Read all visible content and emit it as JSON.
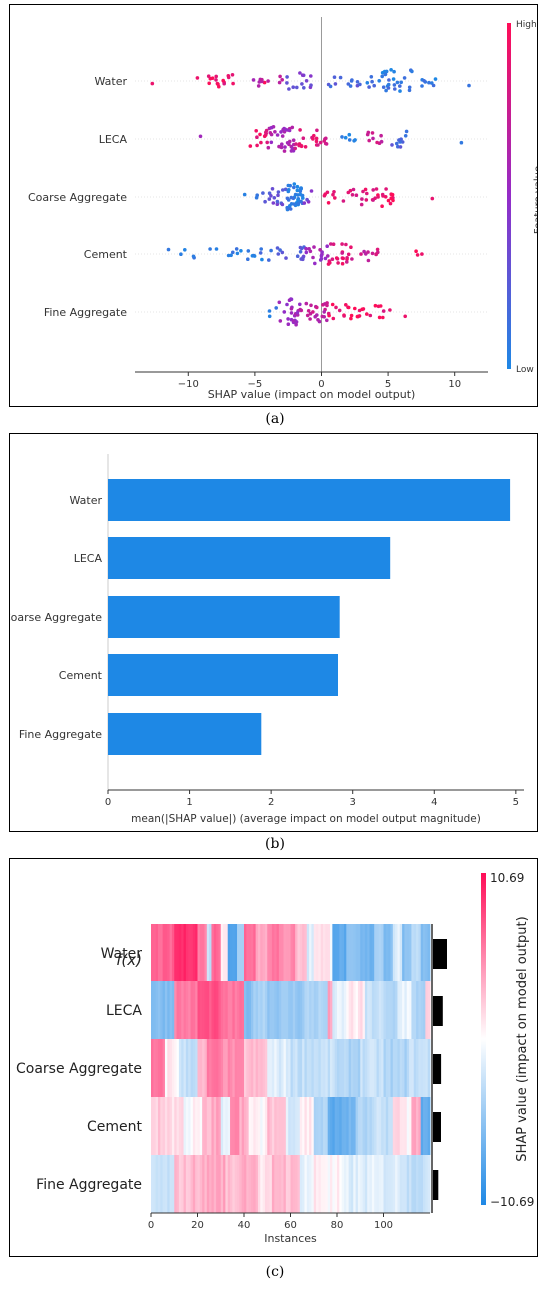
{
  "captions": {
    "a": "(a)",
    "b": "(b)",
    "c": "(c)"
  },
  "colors": {
    "low": "#1e88e5",
    "high": "#ff0d57",
    "bar": "#1e88e5",
    "axis": "#333333"
  },
  "chart_data": [
    {
      "type": "scatter",
      "title": "",
      "xlabel": "SHAP value (impact on model output)",
      "colorbar_label": "Feature value",
      "colorbar_high": "High",
      "colorbar_low": "Low",
      "xlim": [
        -14,
        12.5
      ],
      "xticks": [
        -10,
        -5,
        0,
        5,
        10
      ],
      "xtick_labels": [
        "−10",
        "−5",
        "0",
        "5",
        "10"
      ],
      "features": [
        "Water",
        "LECA",
        "Coarse Aggregate",
        "Cement",
        "Fine Aggregate"
      ],
      "series": [
        {
          "name": "Water",
          "dist": [
            [
              -12.7,
              12.9,
              0.95,
              3
            ],
            [
              -9.5,
              -6.4,
              0.9,
              16
            ],
            [
              -5.3,
              -2.8,
              0.65,
              10
            ],
            [
              -2.6,
              -0.6,
              0.35,
              14
            ],
            [
              0.4,
              3.0,
              0.2,
              12
            ],
            [
              3.2,
              4.4,
              0.1,
              6
            ],
            [
              4.5,
              6.8,
              0.08,
              26
            ],
            [
              7.0,
              8.6,
              0.05,
              8
            ],
            [
              11.0,
              11.1,
              0.05,
              1
            ]
          ]
        },
        {
          "name": "LECA",
          "dist": [
            [
              -9.1,
              -9.0,
              0.5,
              1
            ],
            [
              -5.5,
              -4.0,
              0.9,
              12
            ],
            [
              -4.0,
              -2.0,
              0.6,
              34
            ],
            [
              -2.0,
              0.0,
              0.85,
              18
            ],
            [
              0.1,
              0.5,
              0.8,
              5
            ],
            [
              1.4,
              2.6,
              0.05,
              6
            ],
            [
              3.3,
              4.7,
              0.75,
              9
            ],
            [
              4.8,
              6.4,
              0.2,
              12
            ],
            [
              10.5,
              10.6,
              0.05,
              1
            ]
          ]
        },
        {
          "name": "Coarse Aggregate",
          "dist": [
            [
              -6.0,
              -4.8,
              0.05,
              3
            ],
            [
              -4.5,
              -2.6,
              0.3,
              16
            ],
            [
              -2.6,
              -1.4,
              0.05,
              38
            ],
            [
              -1.3,
              -0.7,
              0.4,
              4
            ],
            [
              0.2,
              2.0,
              0.9,
              8
            ],
            [
              2.0,
              4.0,
              0.85,
              14
            ],
            [
              4.0,
              5.6,
              0.95,
              16
            ],
            [
              8.2,
              8.4,
              0.95,
              1
            ]
          ]
        },
        {
          "name": "Cement",
          "dist": [
            [
              -11.5,
              -9.5,
              0.05,
              5
            ],
            [
              -8.4,
              -6.0,
              0.05,
              8
            ],
            [
              -5.6,
              -3.6,
              0.08,
              10
            ],
            [
              -3.5,
              -1.2,
              0.25,
              14
            ],
            [
              -1.2,
              0.5,
              0.55,
              16
            ],
            [
              0.5,
              2.5,
              0.85,
              22
            ],
            [
              2.5,
              4.5,
              0.75,
              10
            ],
            [
              7.0,
              7.8,
              0.95,
              3
            ]
          ]
        },
        {
          "name": "Fine Aggregate",
          "dist": [
            [
              -4.0,
              -3.2,
              0.05,
              3
            ],
            [
              -3.2,
              -1.6,
              0.55,
              24
            ],
            [
              -1.6,
              0.5,
              0.7,
              24
            ],
            [
              0.5,
              2.0,
              0.9,
              10
            ],
            [
              2.0,
              4.5,
              0.95,
              16
            ],
            [
              4.6,
              5.2,
              0.9,
              3
            ],
            [
              6.2,
              6.3,
              0.95,
              1
            ]
          ]
        }
      ]
    },
    {
      "type": "bar",
      "title": "",
      "xlabel": "mean(|SHAP value|) (average impact on model output magnitude)",
      "categories": [
        "Water",
        "LECA",
        "Coarse Aggregate",
        "Cement",
        "Fine Aggregate"
      ],
      "values": [
        4.93,
        3.46,
        2.84,
        2.82,
        1.88
      ],
      "xlim": [
        0,
        5.1
      ],
      "xticks": [
        0,
        1,
        2,
        3,
        4,
        5
      ],
      "xtick_labels": [
        "0",
        "1",
        "2",
        "3",
        "4",
        "5"
      ]
    },
    {
      "type": "heatmap",
      "title": "",
      "xlabel": "Instances",
      "fx_label": "f(x)",
      "colorbar_label": "SHAP value (impact on model output)",
      "colorbar_max_label": "10.69",
      "colorbar_min_label": "−10.69",
      "vmin": -10.69,
      "vmax": 10.69,
      "n_instances": 120,
      "xticks": [
        0,
        20,
        40,
        60,
        80,
        100
      ],
      "xtick_labels": [
        "0",
        "20",
        "40",
        "60",
        "80",
        "100"
      ],
      "features": [
        "Water",
        "LECA",
        "Coarse Aggregate",
        "Cement",
        "Fine Aggregate"
      ],
      "importance": [
        4.93,
        3.46,
        2.84,
        2.82,
        1.88
      ],
      "rows": [
        {
          "name": "Water",
          "segments": [
            [
              0,
              10,
              6
            ],
            [
              10,
              20,
              9
            ],
            [
              20,
              24,
              5
            ],
            [
              24,
              26,
              -2
            ],
            [
              26,
              30,
              6
            ],
            [
              30,
              33,
              1
            ],
            [
              33,
              37,
              -8
            ],
            [
              37,
              40,
              -3
            ],
            [
              40,
              45,
              6
            ],
            [
              45,
              50,
              3
            ],
            [
              50,
              55,
              5
            ],
            [
              55,
              60,
              4
            ],
            [
              60,
              62,
              5
            ],
            [
              62,
              67,
              2
            ],
            [
              67,
              70,
              -1
            ],
            [
              70,
              74,
              1
            ],
            [
              74,
              78,
              0.5
            ],
            [
              78,
              84,
              -7
            ],
            [
              84,
              90,
              -5
            ],
            [
              90,
              96,
              -6
            ],
            [
              96,
              100,
              -3
            ],
            [
              100,
              104,
              -5
            ],
            [
              104,
              108,
              -1
            ],
            [
              108,
              112,
              -5
            ],
            [
              112,
              116,
              -2
            ],
            [
              116,
              120,
              -5
            ]
          ]
        },
        {
          "name": "LECA",
          "segments": [
            [
              0,
              10,
              -5
            ],
            [
              10,
              20,
              5
            ],
            [
              20,
              30,
              7
            ],
            [
              30,
              40,
              5
            ],
            [
              40,
              44,
              -5
            ],
            [
              44,
              50,
              -3
            ],
            [
              50,
              60,
              -4
            ],
            [
              60,
              66,
              -4
            ],
            [
              66,
              76,
              -3
            ],
            [
              76,
              78,
              3
            ],
            [
              78,
              84,
              -1
            ],
            [
              84,
              92,
              0.5
            ],
            [
              92,
              100,
              -2
            ],
            [
              100,
              106,
              -3
            ],
            [
              106,
              112,
              -0.5
            ],
            [
              112,
              118,
              -3
            ],
            [
              118,
              120,
              1
            ]
          ]
        },
        {
          "name": "Coarse Aggregate",
          "segments": [
            [
              0,
              6,
              5
            ],
            [
              6,
              12,
              0.5
            ],
            [
              12,
              20,
              -2
            ],
            [
              20,
              24,
              2
            ],
            [
              24,
              30,
              5
            ],
            [
              30,
              40,
              4
            ],
            [
              40,
              50,
              2
            ],
            [
              50,
              60,
              -1
            ],
            [
              60,
              70,
              -2
            ],
            [
              70,
              80,
              -2
            ],
            [
              80,
              90,
              -3
            ],
            [
              90,
              100,
              -2
            ],
            [
              100,
              110,
              -3
            ],
            [
              110,
              120,
              -2
            ]
          ]
        },
        {
          "name": "Cement",
          "segments": [
            [
              0,
              8,
              1.5
            ],
            [
              8,
              14,
              1
            ],
            [
              14,
              22,
              0
            ],
            [
              22,
              26,
              2
            ],
            [
              26,
              30,
              3
            ],
            [
              30,
              34,
              -1
            ],
            [
              34,
              38,
              5
            ],
            [
              38,
              42,
              3
            ],
            [
              42,
              50,
              0
            ],
            [
              50,
              58,
              2
            ],
            [
              58,
              64,
              -1
            ],
            [
              64,
              70,
              0.5
            ],
            [
              70,
              76,
              -3
            ],
            [
              76,
              82,
              -7
            ],
            [
              82,
              88,
              -6
            ],
            [
              88,
              96,
              -3
            ],
            [
              96,
              104,
              -2
            ],
            [
              104,
              108,
              1
            ],
            [
              108,
              112,
              0.5
            ],
            [
              112,
              116,
              3
            ],
            [
              116,
              120,
              -7
            ]
          ]
        },
        {
          "name": "Fine Aggregate",
          "segments": [
            [
              0,
              10,
              -2
            ],
            [
              10,
              18,
              2
            ],
            [
              18,
              24,
              2.5
            ],
            [
              24,
              32,
              3
            ],
            [
              32,
              38,
              2
            ],
            [
              38,
              46,
              3
            ],
            [
              46,
              52,
              0.5
            ],
            [
              52,
              58,
              2.5
            ],
            [
              58,
              64,
              2
            ],
            [
              64,
              70,
              -0.5
            ],
            [
              70,
              76,
              0.5
            ],
            [
              76,
              82,
              0
            ],
            [
              82,
              92,
              -1
            ],
            [
              92,
              100,
              -1
            ],
            [
              100,
              110,
              -1
            ],
            [
              110,
              120,
              -2
            ]
          ]
        }
      ],
      "fx": [
        0.3,
        0.2,
        0.1,
        0.3,
        0.2,
        0.5,
        0.7,
        0.8,
        1.0,
        0.9,
        1.1,
        1.3,
        1.2,
        1.4,
        1.3,
        1.6,
        1.5,
        1.2,
        1.4,
        1.1,
        0.9,
        1.0,
        0.7,
        0.9,
        2.5,
        1.8,
        0.9,
        0.6,
        0.8,
        1.2,
        0.9,
        1.1,
        0.4,
        0.3,
        0.6,
        0.2,
        0.5,
        0.8,
        0.6,
        0.1,
        0.3,
        0.2,
        0.0,
        -0.1,
        -0.2,
        0.2,
        -0.1,
        -0.3,
        0.2,
        0.0,
        -0.2,
        0.3,
        -0.1,
        -0.4,
        0.0,
        0.1,
        0.2,
        0.1,
        0.2,
        -0.1,
        0.0,
        -0.3,
        -0.2,
        -0.4,
        -0.3,
        -0.5,
        -0.6,
        -0.4,
        -0.5,
        -0.8,
        -0.6,
        -0.9,
        -0.4,
        -0.2,
        -0.6,
        -0.4,
        -0.2,
        -0.5,
        -0.6,
        -0.7,
        -0.9,
        -0.8,
        -0.6,
        -0.9,
        -0.7,
        -0.5,
        -0.8,
        -0.6,
        -0.9,
        -0.7,
        -0.5,
        -0.6,
        -0.8,
        -0.7,
        -0.9,
        -0.5,
        -0.6,
        -0.4,
        -0.6,
        -0.8,
        -0.5,
        -0.7,
        -0.3,
        -0.1,
        -0.4,
        -0.2,
        -0.3,
        -0.1,
        0.0,
        -0.3,
        -0.1,
        -0.2,
        0.0,
        -0.4,
        -0.2,
        -0.3,
        -0.1,
        -0.2,
        -0.4,
        0.2
      ],
      "fx_mean": 0.0
    }
  ]
}
